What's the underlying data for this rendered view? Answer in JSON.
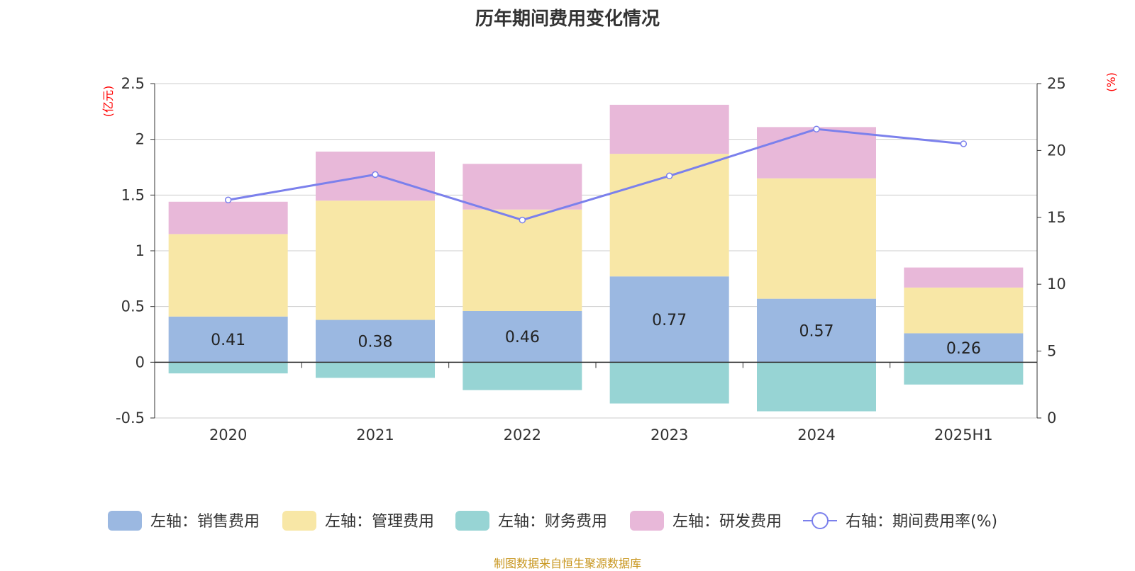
{
  "chart_data": {
    "type": "bar",
    "stacked": true,
    "title": "历年期间费用变化情况",
    "categories": [
      "2020",
      "2021",
      "2022",
      "2023",
      "2024",
      "2025H1"
    ],
    "y_left": {
      "unit": "(亿元)",
      "min": -0.5,
      "max": 2.5,
      "ticks": [
        -0.5,
        0,
        0.5,
        1,
        1.5,
        2,
        2.5
      ]
    },
    "y_right": {
      "unit": "(%)",
      "min": 0,
      "max": 25,
      "ticks": [
        0,
        5,
        10,
        15,
        20,
        25
      ]
    },
    "grid": true,
    "legend_position": "bottom",
    "series": [
      {
        "name": "左轴：销售费用",
        "kind": "bar",
        "axis": "left",
        "color": "#9bb8e1",
        "values": [
          0.41,
          0.38,
          0.46,
          0.77,
          0.57,
          0.26
        ],
        "labels": [
          "0.41",
          "0.38",
          "0.46",
          "0.77",
          "0.57",
          "0.26"
        ]
      },
      {
        "name": "左轴：管理费用",
        "kind": "bar",
        "axis": "left",
        "color": "#f8e7a6",
        "values": [
          0.74,
          1.07,
          0.91,
          1.1,
          1.08,
          0.41
        ]
      },
      {
        "name": "左轴：财务费用",
        "kind": "bar",
        "axis": "left",
        "color": "#97d4d4",
        "values": [
          -0.1,
          -0.14,
          -0.25,
          -0.37,
          -0.44,
          -0.2
        ]
      },
      {
        "name": "左轴：研发费用",
        "kind": "bar",
        "axis": "left",
        "color": "#e8b8d9",
        "values": [
          0.29,
          0.44,
          0.41,
          0.44,
          0.46,
          0.18
        ]
      },
      {
        "name": "右轴：期间费用率(%)",
        "kind": "line",
        "axis": "right",
        "color": "#7b80ec",
        "values": [
          16.3,
          18.2,
          14.8,
          18.1,
          21.6,
          20.5
        ]
      }
    ]
  },
  "source_note": "制图数据来自恒生聚源数据库"
}
